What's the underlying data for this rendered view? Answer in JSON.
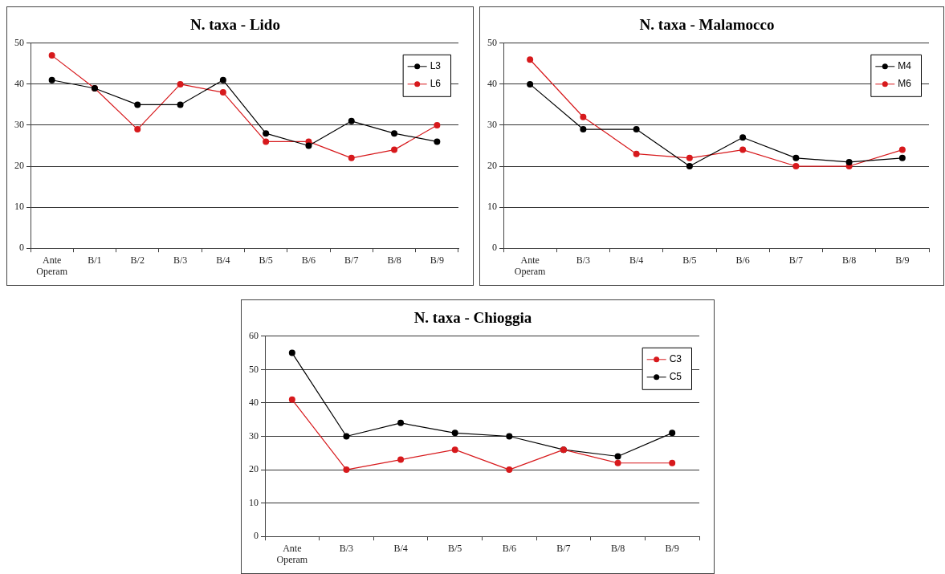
{
  "chart_data": [
    {
      "type": "line",
      "title": "N. taxa - Lido",
      "categories": [
        "Ante Operam",
        "B/1",
        "B/2",
        "B/3",
        "B/4",
        "B/5",
        "B/6",
        "B/7",
        "B/8",
        "B/9"
      ],
      "series": [
        {
          "name": "L3",
          "color": "#000000",
          "values": [
            41,
            39,
            35,
            35,
            41,
            28,
            25,
            31,
            28,
            26
          ]
        },
        {
          "name": "L6",
          "color": "#d7191c",
          "values": [
            47,
            39,
            29,
            40,
            38,
            26,
            26,
            22,
            24,
            30
          ]
        }
      ],
      "ylim": [
        0,
        50
      ],
      "yticks": [
        0,
        10,
        20,
        30,
        40,
        50
      ],
      "grid": "y",
      "legend": "top right",
      "marker": "circle",
      "line_style": "solid"
    },
    {
      "type": "line",
      "title": "N. taxa - Malamocco",
      "categories": [
        "Ante Operam",
        "B/3",
        "B/4",
        "B/5",
        "B/6",
        "B/7",
        "B/8",
        "B/9"
      ],
      "series": [
        {
          "name": "M4",
          "color": "#000000",
          "values": [
            40,
            29,
            29,
            20,
            27,
            22,
            21,
            22
          ]
        },
        {
          "name": "M6",
          "color": "#d7191c",
          "values": [
            46,
            32,
            23,
            22,
            24,
            20,
            20,
            24
          ]
        }
      ],
      "ylim": [
        0,
        50
      ],
      "yticks": [
        0,
        10,
        20,
        30,
        40,
        50
      ],
      "grid": "y",
      "legend": "top right",
      "marker": "circle",
      "line_style": "solid"
    },
    {
      "type": "line",
      "title": "N. taxa - Chioggia",
      "categories": [
        "Ante Operam",
        "B/3",
        "B/4",
        "B/5",
        "B/6",
        "B/7",
        "B/8",
        "B/9"
      ],
      "series": [
        {
          "name": "C3",
          "color": "#d7191c",
          "values": [
            41,
            20,
            23,
            26,
            20,
            26,
            22,
            22
          ]
        },
        {
          "name": "C5",
          "color": "#000000",
          "values": [
            55,
            30,
            34,
            31,
            30,
            26,
            24,
            31
          ]
        }
      ],
      "ylim": [
        0,
        60
      ],
      "yticks": [
        0,
        10,
        20,
        30,
        40,
        50,
        60
      ],
      "grid": "y",
      "legend": "top right",
      "marker": "circle",
      "line_style": "solid"
    }
  ]
}
